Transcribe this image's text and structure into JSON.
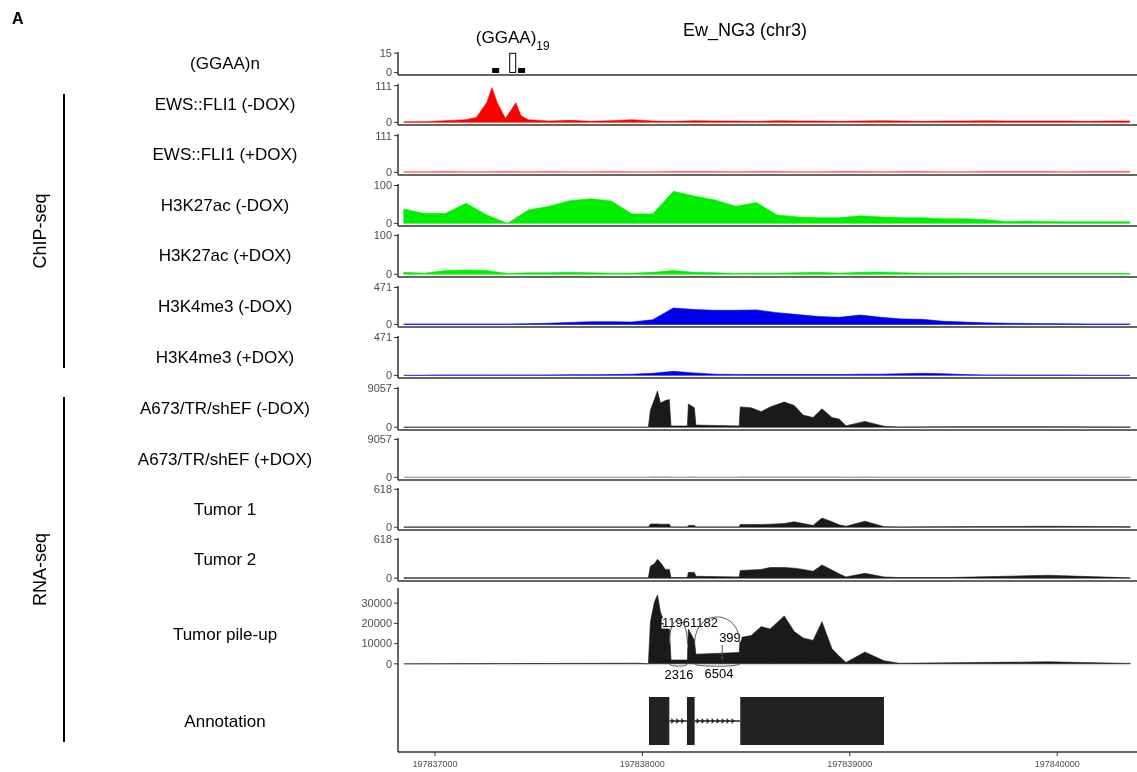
{
  "chart_data": [
    {
      "type": "bar",
      "title": "Ew_NG3 (chr3)",
      "ylabel": "(GGAA)n",
      "annotations": [
        "A",
        {
          "text": "(GGAA)$_{19}$",
          "x": 197837375,
          "y": 15
        }
      ],
      "x": [
        197837293,
        197837375,
        197837418
      ],
      "xlim": [
        197836822,
        197840375
      ],
      "ylim": [
        -2,
        16
      ],
      "yticks": [
        0,
        15
      ],
      "tick_labels": "y",
      "series": [
        {
          "values": [
            3,
            15,
            3
          ],
          "colors": [
            "#000000",
            "#ffffff",
            "#000000"
          ],
          "color": "#000000"
        }
      ]
    },
    {
      "type": "area",
      "ylabel": "EWS::FLI1 (-DOX)",
      "annotations": [
        "ChIP-seq"
      ],
      "xlim": [
        197836822,
        197840375
      ],
      "ylim": [
        -8,
        116
      ],
      "yticks": [
        0,
        111
      ],
      "tick_labels": "y",
      "series": [
        {
          "color": "#ff0000",
          "x": [
            197836850,
            197836950,
            197837050,
            197837150,
            197837200,
            197837250,
            197837275,
            197837300,
            197837340,
            197837370,
            197837390,
            197837415,
            197837450,
            197837550,
            197837650,
            197837750,
            197837850,
            197837950,
            197838050,
            197838150,
            197838250,
            197838350,
            197838450,
            197838550,
            197838650,
            197838750,
            197838850,
            197838950,
            197839050,
            197839150,
            197839250,
            197839350,
            197839450,
            197839550,
            197839650,
            197839750,
            197839850,
            197839950,
            197840050,
            197840150,
            197840250,
            197840350
          ],
          "values": [
            2,
            2,
            5,
            8,
            15,
            60,
            105,
            60,
            12,
            40,
            59,
            20,
            8,
            4,
            6,
            3,
            5,
            8,
            4,
            3,
            5,
            4,
            4,
            3,
            5,
            4,
            4,
            3,
            4,
            5,
            4,
            3,
            4,
            4,
            5,
            4,
            4,
            4,
            4,
            3,
            4,
            4
          ]
        }
      ]
    },
    {
      "type": "area",
      "ylabel": "EWS::FLI1 (+DOX)",
      "xlim": [
        197836822,
        197840375
      ],
      "ylim": [
        -8,
        116
      ],
      "yticks": [
        0,
        111
      ],
      "tick_labels": "y",
      "x": [
        197836850,
        197836950,
        197837050,
        197837150,
        197837250,
        197837350,
        197837450,
        197837550,
        197837650,
        197837750,
        197837850,
        197837950,
        197838050,
        197838150,
        197838250,
        197838350,
        197838450,
        197838550,
        197838650,
        197838750,
        197838850,
        197838950,
        197839050,
        197839150,
        197839250,
        197839350,
        197839450,
        197839550,
        197839650,
        197839750,
        197839850,
        197839950,
        197840050,
        197840150,
        197840250,
        197840350
      ],
      "series": [
        {
          "color": "#ff5a5a",
          "values": [
            2,
            2,
            3,
            2,
            2,
            3,
            2,
            3,
            2,
            2,
            3,
            2,
            2,
            3,
            3,
            3,
            2,
            3,
            3,
            2,
            2,
            3,
            3,
            2,
            3,
            3,
            2,
            2,
            3,
            3,
            3,
            3,
            2,
            3,
            3,
            3
          ]
        }
      ]
    },
    {
      "type": "area",
      "ylabel": "H3K27ac (-DOX)",
      "xlim": [
        197836822,
        197840375
      ],
      "ylim": [
        -7,
        104
      ],
      "yticks": [
        0,
        100
      ],
      "tick_labels": "y",
      "x": [
        197836850,
        197836950,
        197837050,
        197837150,
        197837250,
        197837350,
        197837450,
        197837550,
        197837650,
        197837750,
        197837850,
        197837950,
        197838050,
        197838150,
        197838250,
        197838350,
        197838450,
        197838550,
        197838650,
        197838750,
        197838850,
        197838950,
        197839050,
        197839150,
        197839250,
        197839350,
        197839450,
        197839550,
        197839650,
        197839750,
        197839850,
        197839950,
        197840050,
        197840150,
        197840250,
        197840350
      ],
      "series": [
        {
          "color": "#00ee00",
          "values": [
            38,
            26,
            26,
            53,
            22,
            0,
            35,
            45,
            60,
            65,
            59,
            25,
            25,
            85,
            72,
            62,
            45,
            55,
            22,
            17,
            15,
            15,
            20,
            17,
            15,
            15,
            12,
            12,
            10,
            5,
            6,
            5,
            4,
            4,
            4,
            4
          ]
        }
      ]
    },
    {
      "type": "area",
      "ylabel": "H3K27ac (+DOX)",
      "xlim": [
        197836822,
        197840375
      ],
      "ylim": [
        -7,
        104
      ],
      "yticks": [
        0,
        100
      ],
      "tick_labels": "y",
      "x": [
        197836850,
        197836950,
        197837050,
        197837150,
        197837250,
        197837350,
        197837450,
        197837550,
        197837650,
        197837750,
        197837850,
        197837950,
        197838050,
        197838150,
        197838250,
        197838350,
        197838450,
        197838550,
        197838650,
        197838750,
        197838850,
        197838950,
        197839050,
        197839150,
        197839250,
        197839350,
        197839450,
        197839550,
        197839650,
        197839750,
        197839850,
        197839950,
        197840050,
        197840150,
        197840250,
        197840350
      ],
      "series": [
        {
          "color": "#00ee00",
          "values": [
            5,
            3,
            10,
            11,
            10,
            2,
            4,
            4,
            5,
            4,
            3,
            3,
            5,
            10,
            5,
            4,
            2,
            3,
            3,
            4,
            5,
            3,
            5,
            6,
            4,
            3,
            3,
            2,
            2,
            2,
            2,
            2,
            2,
            2,
            2,
            2
          ]
        }
      ]
    },
    {
      "type": "area",
      "ylabel": "H3K4me3 (-DOX)",
      "xlim": [
        197836822,
        197840375
      ],
      "ylim": [
        -33,
        490
      ],
      "yticks": [
        0,
        471
      ],
      "tick_labels": "y",
      "x": [
        197836850,
        197836950,
        197837050,
        197837150,
        197837250,
        197837350,
        197837450,
        197837550,
        197837650,
        197837750,
        197837850,
        197837950,
        197838050,
        197838150,
        197838250,
        197838350,
        197838450,
        197838550,
        197838650,
        197838750,
        197838850,
        197838950,
        197839050,
        197839150,
        197839250,
        197839350,
        197839450,
        197839550,
        197839650,
        197839750,
        197839850,
        197839950,
        197840050,
        197840150,
        197840250,
        197840350
      ],
      "series": [
        {
          "color": "#0000ee",
          "values": [
            5,
            5,
            5,
            5,
            5,
            5,
            10,
            15,
            25,
            35,
            35,
            30,
            60,
            210,
            190,
            180,
            180,
            185,
            150,
            125,
            100,
            90,
            120,
            90,
            70,
            65,
            40,
            30,
            20,
            15,
            12,
            10,
            8,
            5,
            5,
            5
          ]
        }
      ]
    },
    {
      "type": "area",
      "ylabel": "H3K4me3 (+DOX)",
      "xlim": [
        197836822,
        197840375
      ],
      "ylim": [
        -33,
        490
      ],
      "yticks": [
        0,
        471
      ],
      "tick_labels": "y",
      "x": [
        197836850,
        197836950,
        197837050,
        197837150,
        197837250,
        197837350,
        197837450,
        197837550,
        197837650,
        197837750,
        197837850,
        197837950,
        197838050,
        197838150,
        197838250,
        197838350,
        197838450,
        197838550,
        197838650,
        197838750,
        197838850,
        197838950,
        197839050,
        197839150,
        197839250,
        197839350,
        197839450,
        197839550,
        197839650,
        197839750,
        197839850,
        197839950,
        197840050,
        197840150,
        197840250,
        197840350
      ],
      "series": [
        {
          "color": "#0000ee",
          "values": [
            0,
            0,
            5,
            5,
            5,
            5,
            5,
            5,
            8,
            8,
            10,
            15,
            25,
            50,
            30,
            15,
            12,
            10,
            10,
            10,
            10,
            10,
            15,
            15,
            20,
            25,
            20,
            10,
            5,
            5,
            3,
            3,
            3,
            0,
            0,
            0
          ]
        }
      ]
    },
    {
      "type": "area",
      "ylabel": "A673/TR/shEF (-DOX)",
      "annotations": [
        "RNA-seq"
      ],
      "xlim": [
        197836822,
        197840375
      ],
      "ylim": [
        -650,
        9400
      ],
      "yticks": [
        0,
        9057
      ],
      "tick_labels": "y",
      "x": [
        197836850,
        197837986,
        197838029,
        197838039,
        197838058,
        197838073,
        197838087,
        197838111,
        197838130,
        197838138,
        197838217,
        197838222,
        197838251,
        197838258,
        197838467,
        197838472,
        197838525,
        197838573,
        197838616,
        197838684,
        197838732,
        197838775,
        197838823,
        197838866,
        197838914,
        197838948,
        197838982,
        197839073,
        197839165,
        197839237,
        197839477,
        197839958,
        197840352
      ],
      "series": [
        {
          "color": "#1a1a1a",
          "values": [
            0,
            0,
            0,
            4000,
            6500,
            8490,
            5660,
            6230,
            6450,
            300,
            300,
            5430,
            4530,
            500,
            300,
            4750,
            4530,
            3620,
            4750,
            5890,
            5100,
            2830,
            2260,
            4300,
            2260,
            1920,
            340,
            1360,
            230,
            50,
            100,
            100,
            50
          ]
        }
      ]
    },
    {
      "type": "area",
      "ylabel": "A673/TR/shEF (+DOX)",
      "xlim": [
        197836822,
        197840375
      ],
      "ylim": [
        -650,
        9400
      ],
      "yticks": [
        0,
        9057
      ],
      "tick_labels": "y",
      "x": [
        197836850,
        197837986,
        197838029,
        197838039,
        197838058,
        197838073,
        197838087,
        197838111,
        197838130,
        197838138,
        197838217,
        197838222,
        197838251,
        197838258,
        197838467,
        197838472,
        197838525,
        197838573,
        197838616,
        197838684,
        197838732,
        197838775,
        197838823,
        197838866,
        197838914,
        197838948,
        197838982,
        197839073,
        197839165,
        197839237,
        197839477,
        197839958,
        197840352
      ],
      "series": [
        {
          "color": "#808080",
          "values": [
            0,
            0,
            0,
            80,
            80,
            80,
            80,
            80,
            80,
            0,
            0,
            80,
            80,
            0,
            0,
            80,
            80,
            80,
            80,
            80,
            80,
            80,
            80,
            80,
            60,
            60,
            0,
            40,
            0,
            0,
            0,
            0,
            0
          ]
        }
      ]
    },
    {
      "type": "area",
      "ylabel": "Tumor 1",
      "xlim": [
        197836822,
        197840375
      ],
      "ylim": [
        -45,
        640
      ],
      "yticks": [
        0,
        618
      ],
      "tick_labels": "y",
      "x": [
        197836850,
        197837986,
        197838029,
        197838039,
        197838058,
        197838073,
        197838087,
        197838111,
        197838130,
        197838138,
        197838217,
        197838222,
        197838251,
        197838258,
        197838467,
        197838472,
        197838525,
        197838573,
        197838616,
        197838684,
        197838732,
        197838775,
        197838823,
        197838866,
        197838914,
        197838948,
        197838982,
        197839073,
        197839165,
        197839237,
        197839477,
        197839958,
        197840352
      ],
      "series": [
        {
          "color": "#1a1a1a",
          "values": [
            5,
            5,
            5,
            53,
            53,
            53,
            50,
            50,
            50,
            5,
            5,
            30,
            30,
            5,
            5,
            45,
            45,
            45,
            50,
            60,
            90,
            60,
            30,
            150,
            90,
            40,
            15,
            98,
            10,
            5,
            10,
            15,
            10
          ]
        }
      ]
    },
    {
      "type": "area",
      "ylabel": "Tumor 2",
      "xlim": [
        197836822,
        197840375
      ],
      "ylim": [
        -45,
        640
      ],
      "yticks": [
        0,
        618
      ],
      "tick_labels": "y",
      "x": [
        197836850,
        197837986,
        197838029,
        197838039,
        197838058,
        197838073,
        197838087,
        197838111,
        197838130,
        197838138,
        197838217,
        197838222,
        197838251,
        197838258,
        197838467,
        197838472,
        197838525,
        197838573,
        197838616,
        197838684,
        197838732,
        197838775,
        197838823,
        197838866,
        197838914,
        197838948,
        197838982,
        197839073,
        197839165,
        197839237,
        197839477,
        197839958,
        197840352
      ],
      "series": [
        {
          "color": "#1a1a1a",
          "values": [
            5,
            5,
            5,
            193,
            230,
            300,
            250,
            140,
            140,
            10,
            10,
            93,
            90,
            30,
            20,
            124,
            130,
            140,
            170,
            170,
            160,
            140,
            110,
            210,
            130,
            70,
            20,
            77,
            20,
            10,
            10,
            46,
            5
          ]
        }
      ]
    },
    {
      "type": "area",
      "ylabel": "Tumor pile-up",
      "xlim": [
        197836822,
        197840375
      ],
      "ylim": [
        -43600,
        37500
      ],
      "yticks": [
        0,
        10000,
        20000,
        30000
      ],
      "xticks": [
        197837000,
        197838000,
        197839000,
        197840000
      ],
      "annotations": [
        "1196",
        "1182",
        "399",
        "2316",
        "6504",
        "Annotation"
      ],
      "x": [
        197836850,
        197837986,
        197838029,
        197838039,
        197838058,
        197838073,
        197838087,
        197838111,
        197838130,
        197838138,
        197838217,
        197838222,
        197838251,
        197838258,
        197838467,
        197838472,
        197838525,
        197838573,
        197838616,
        197838684,
        197838732,
        197838775,
        197838823,
        197838866,
        197838914,
        197838948,
        197838982,
        197839073,
        197839165,
        197839237,
        197839477,
        197839958,
        197840352
      ],
      "series": [
        {
          "color": "#1a1a1a",
          "values": [
            0,
            300,
            0,
            20800,
            30500,
            34100,
            25700,
            18900,
            18900,
            1900,
            1900,
            17200,
            11600,
            4800,
            5600,
            13000,
            14000,
            18400,
            17200,
            23700,
            16000,
            12800,
            11600,
            20800,
            7500,
            3900,
            700,
            5800,
            1500,
            300,
            500,
            1000,
            200
          ]
        }
      ]
    }
  ]
}
